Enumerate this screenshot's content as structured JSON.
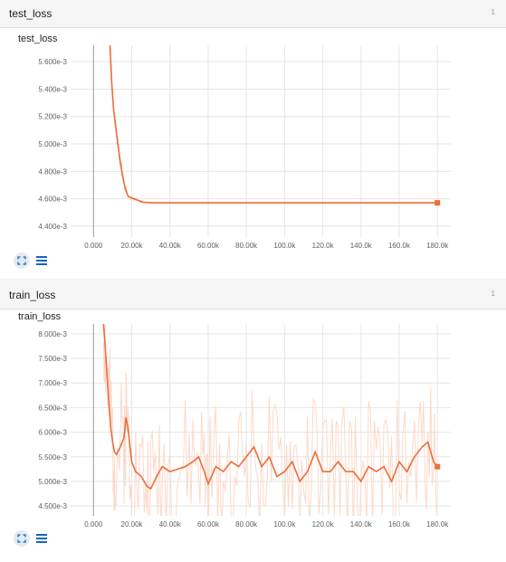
{
  "panels": [
    {
      "header_title": "test_loss",
      "count": "1",
      "icons": {
        "expand": "expand-icon",
        "data": "list-icon"
      },
      "chart_data": {
        "type": "line",
        "title": "test_loss",
        "xlabel": "",
        "ylabel": "",
        "xlim": [
          -12000,
          187000
        ],
        "ylim": [
          0.00432,
          0.00572
        ],
        "x_ticks": [
          "0.000",
          "20.00k",
          "40.00k",
          "60.00k",
          "80.00k",
          "100.0k",
          "120.0k",
          "140.0k",
          "160.0k",
          "180.0k"
        ],
        "y_ticks": [
          "4.400e-3",
          "4.600e-3",
          "4.800e-3",
          "5.000e-3",
          "5.200e-3",
          "5.400e-3",
          "5.600e-3"
        ],
        "grid": true,
        "colors": {
          "smoothed": "#ef6c3a",
          "raw": "#fcd9c9"
        },
        "series": [
          {
            "smoothed": true,
            "x": [
              8500,
              9500,
              10500,
              12000,
              13500,
              15000,
              16500,
              18000,
              20000,
              23000,
              26000,
              30000,
              40000,
              60000,
              100000,
              140000,
              180000
            ],
            "y": [
              0.00575,
              0.00545,
              0.00525,
              0.00508,
              0.00492,
              0.00478,
              0.00468,
              0.00462,
              0.004605,
              0.00459,
              0.004575,
              0.00457,
              0.00457,
              0.00457,
              0.00457,
              0.00457,
              0.00457
            ]
          }
        ]
      }
    },
    {
      "header_title": "train_loss",
      "count": "1",
      "icons": {
        "expand": "expand-icon",
        "data": "list-icon"
      },
      "chart_data": {
        "type": "line",
        "title": "train_loss",
        "xlabel": "",
        "ylabel": "",
        "xlim": [
          -12000,
          187000
        ],
        "ylim": [
          0.0043,
          0.0082
        ],
        "x_ticks": [
          "0.000",
          "20.00k",
          "40.00k",
          "60.00k",
          "80.00k",
          "100.0k",
          "120.0k",
          "140.0k",
          "160.0k",
          "180.0k"
        ],
        "y_ticks": [
          "4.500e-3",
          "5.000e-3",
          "5.500e-3",
          "6.000e-3",
          "6.500e-3",
          "7.000e-3",
          "7.500e-3",
          "8.000e-3"
        ],
        "grid": true,
        "colors": {
          "smoothed": "#ef6c3a",
          "raw": "#fcd9c9"
        },
        "series": [
          {
            "smoothed": true,
            "x": [
              5000,
              6000,
              7000,
              8000,
              9000,
              10000,
              11000,
              12000,
              14000,
              16000,
              17000,
              18000,
              20000,
              22000,
              25000,
              28000,
              30000,
              33000,
              36000,
              40000,
              44000,
              48000,
              52000,
              55000,
              58000,
              60000,
              64000,
              68000,
              72000,
              76000,
              80000,
              84000,
              88000,
              92000,
              96000,
              100000,
              104000,
              108000,
              112000,
              116000,
              120000,
              124000,
              128000,
              132000,
              136000,
              140000,
              144000,
              148000,
              152000,
              156000,
              160000,
              164000,
              168000,
              172000,
              175000,
              178000,
              180000
            ],
            "y": [
              0.0083,
              0.0078,
              0.0072,
              0.0066,
              0.0061,
              0.0058,
              0.0056,
              0.00555,
              0.0057,
              0.0059,
              0.0063,
              0.0061,
              0.0054,
              0.0052,
              0.0051,
              0.0049,
              0.00485,
              0.0051,
              0.0053,
              0.0052,
              0.00525,
              0.0053,
              0.0054,
              0.0055,
              0.0052,
              0.00495,
              0.0053,
              0.0052,
              0.0054,
              0.0053,
              0.0055,
              0.0057,
              0.0053,
              0.0055,
              0.0051,
              0.0052,
              0.0054,
              0.005,
              0.0052,
              0.0056,
              0.0052,
              0.0052,
              0.0054,
              0.0052,
              0.0052,
              0.005,
              0.0053,
              0.0052,
              0.0053,
              0.005,
              0.0054,
              0.0052,
              0.0055,
              0.0057,
              0.0058,
              0.0054,
              0.0053
            ]
          }
        ]
      }
    }
  ]
}
